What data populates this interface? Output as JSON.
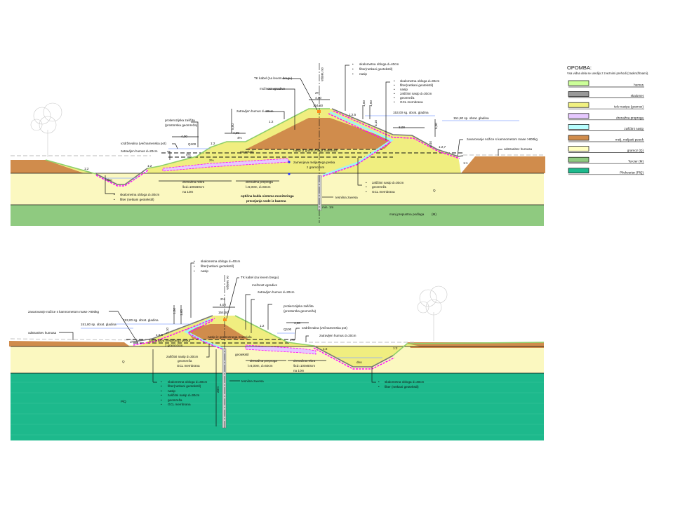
{
  "legend": {
    "title": "OPOMBA:",
    "note": "Vsa vidna dela se uredijo z zveznimi prehodi (zaokrožitvami).",
    "items": [
      {
        "label": "humus",
        "color": "#ccff99"
      },
      {
        "label": "skalomet",
        "color": "#999999"
      },
      {
        "label": "telo nasipa (gramoz)",
        "color": "#f0f080"
      },
      {
        "label": "drenažna preproga",
        "color": "#e6c8ff"
      },
      {
        "label": "zaščitni nasip",
        "color": "#b8ffff"
      },
      {
        "label": "melj, meljasti pesek",
        "color": "#d08c4c"
      },
      {
        "label": "gramoz (Q)",
        "color": "#ffffc0"
      },
      {
        "label": "Tercier (M)",
        "color": "#8fca80"
      },
      {
        "label": "Pliokvartar (PlQ)",
        "color": "#1db98c"
      }
    ]
  },
  "colors": {
    "drain": "#ff00ff",
    "protection": "#9ff3f3",
    "water": "#8aa8ff"
  },
  "top": {
    "crest_list": [
      "skalometna obloga d=40cm",
      "filter(netkani geotekstil)",
      "nasip"
    ],
    "axis": "os nasipa",
    "tk": "TK kabel (na levem bregu)",
    "mozn": "možnost vgradive",
    "crest_slope": "2%",
    "crest_width": "4,00",
    "crest_elev": "154,50",
    "slope_list": [
      "skalometna obloga d=30cm",
      "filter(netkani geotekstil)",
      "nasip",
      "zaščitni nasip d=30cm",
      "geomreža",
      "GCL membrana"
    ],
    "humus1": "zatravljen humus d=20cm",
    "water1": "153,00 sg. obrat. gladina",
    "water2": "151,80 sp. obrat. gladina",
    "prot1": "protierozijska zaščita",
    "prot2": "(prostorska geomreža)",
    "d100": "1,00",
    "d150": "1,50",
    "d310": "3,10",
    "d500a": "5,00",
    "d400a": "4,00",
    "p4a": "4%",
    "d400b": "4,00",
    "path": "vzdrževalna (večnamenska pot)",
    "q100": "Q100",
    "humus2": "zatravljen humus d=20cm",
    "p4b": "4%",
    "p2": "2%",
    "geotex": "geotekstil",
    "gravel": "nasip iz gramoznega materiala",
    "repl1": "zamenjava meljastega peska",
    "repl2": "z gramozom",
    "s12a": "1:2",
    "s12b": "1:2",
    "s12c": "1:2",
    "s12d": "1:2",
    "s125": "1:2,5",
    "s127": "1:2,7",
    "s11": "1:1",
    "d300": "3,00",
    "d500b": "5,00",
    "d140": "1,40",
    "toe": "zavarovanje nožice s kamnometom mase >800kg",
    "strip": "odstranitev humusa",
    "dno": "dno",
    "rib1": "drenažna rebra",
    "rib2": "šxd=100x60cm",
    "rib3": "na 10m",
    "mat1": "drenažna preproga",
    "mat2": "l=6,00m, d=60cm",
    "opt1": "optična kabla sistema monitoringa",
    "opt2": "precejanja vode iz bazena",
    "ditch_list": [
      "skalometna obloga d=30cm",
      "filter (netkani geotekstil)"
    ],
    "prot_list": [
      "zaščitni nasip d=30cm",
      "geomreža",
      "GCL membrana"
    ],
    "q": "Q",
    "curtain": "tesnilna zavesa",
    "min": "min. 1m",
    "base": "manj prepustna podlaga",
    "base_code": "(M)"
  },
  "bottom": {
    "crest_list": [
      "skalometna obloga d=40cm",
      "filter(netkani geotekstil)",
      "nasip"
    ],
    "axis": "os nasipa",
    "tk": "TK kabel (na levem bregu)",
    "mozn": "možnost vgradive",
    "humus1": "zatravljen humus d=20cm",
    "crest_slope": "2%",
    "crest_width": "4,00",
    "crest_elev": "154,50",
    "toe": "zavarovanje nožice s kamnometom mase >800kg",
    "water1": "153,00 sg. obrat. gladina",
    "water2": "151,80 sp. obrat. gladina",
    "d150": "1,50",
    "d100": "1,00",
    "d310": "3,10",
    "strip": "odstranitev humusa",
    "s125": "1:2,5",
    "s12a": "1:2",
    "s12b": "1:2",
    "s12c": "1:2",
    "prot1": "protierozijska zaščita",
    "prot2": "(prostorska geomreža)",
    "d400": "4,00",
    "q100": "Q100",
    "path": "vzdrževalna (večnamenska pot)",
    "humus2": "zatravljen humus d=20cm",
    "p4": "4%",
    "repl1": "zamenjava meljastega peska",
    "repl2": "z gramozom",
    "gravel": "nasip iz gramoznega materiala",
    "prot_list_label": "zaščitni nasip d=30cm",
    "prot_list2": [
      "geomreža",
      "GCL membrana"
    ],
    "geotex": "geotekstil",
    "mat1": "drenažna preproga",
    "mat2": "l=6,00m, d=60cm",
    "rib1": "drenažna rebra",
    "rib2": "šxd=100x60cm",
    "rib3": "na 10m",
    "dno": "dno",
    "q": "Q",
    "plq": "PlQ",
    "curtain": "tesnilna zavesa",
    "depth": "20m",
    "slope_list": [
      "skalometna obloga d=30cm",
      "filter(netkani geotekstil)",
      "nasip",
      "zaščitni nasip d=30cm",
      "geomreža",
      "GCL membrana"
    ],
    "ditch_list": [
      "skalometna obloga d=30cm",
      "filter (netkani geotekstil)"
    ]
  }
}
